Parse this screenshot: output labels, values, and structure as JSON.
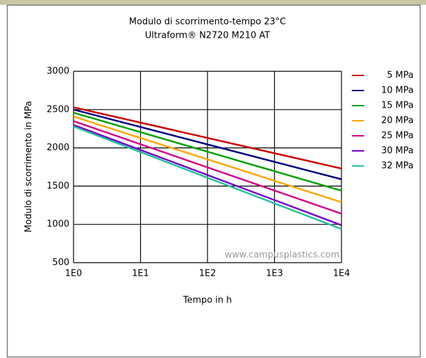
{
  "chart_data": {
    "type": "line",
    "title": "Modulo di scorrimento-tempo 23°C",
    "subtitle": "Ultraform® N2720 M210 AT",
    "x_label": "Tempo in h",
    "y_label": "Modulo di scorrimento in MPa",
    "annotation": "www.campusplastics.com",
    "x": [
      1,
      10000
    ],
    "xscale": "log",
    "xlim": [
      1,
      10000
    ],
    "xticks": [
      {
        "value": 1,
        "label": "1E0"
      },
      {
        "value": 10,
        "label": "1E1"
      },
      {
        "value": 100,
        "label": "1E2"
      },
      {
        "value": 1000,
        "label": "1E3"
      },
      {
        "value": 10000,
        "label": "1E4"
      }
    ],
    "ylim": [
      500,
      3000
    ],
    "yticks": [
      500,
      1000,
      1500,
      2000,
      2500,
      3000
    ],
    "grid": true,
    "legend": "right",
    "series": [
      {
        "name": "5 MPa",
        "color": "#cc0000",
        "values": [
          2530,
          1730
        ]
      },
      {
        "name": "10 MPa",
        "color": "#000080",
        "values": [
          2500,
          1590
        ]
      },
      {
        "name": "15 MPa",
        "color": "#00a000",
        "values": [
          2460,
          1440
        ]
      },
      {
        "name": "20 MPa",
        "color": "#ffa500",
        "values": [
          2410,
          1290
        ]
      },
      {
        "name": "25 MPa",
        "color": "#d4008a",
        "values": [
          2350,
          1140
        ]
      },
      {
        "name": "30 MPa",
        "color": "#7700cc",
        "values": [
          2300,
          990
        ]
      },
      {
        "name": "32 MPa",
        "color": "#20c0a0",
        "values": [
          2280,
          940
        ]
      }
    ]
  }
}
